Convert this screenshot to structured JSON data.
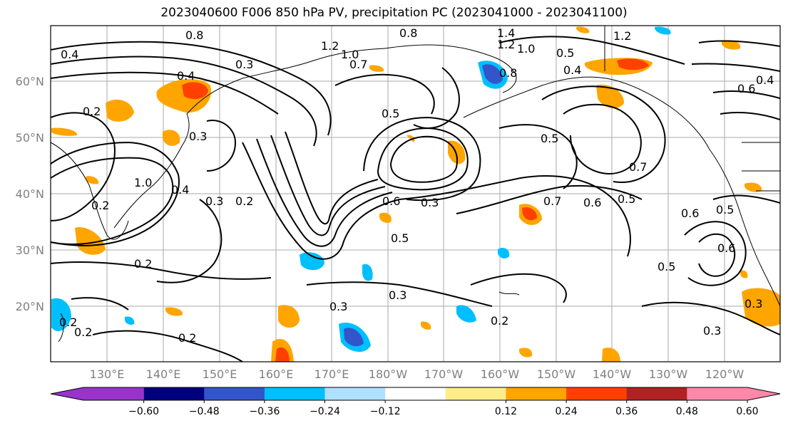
{
  "title": "2023040600 F006 850 hPa PV, precipitation PC (2023041000 - 2023041100)",
  "map": {
    "lat_labels": [
      "60°N",
      "50°N",
      "40°N",
      "30°N",
      "20°N"
    ],
    "lon_labels": [
      "130°E",
      "140°E",
      "150°E",
      "160°E",
      "170°E",
      "180°W",
      "170°W",
      "160°W",
      "150°W",
      "140°W",
      "130°W",
      "120°W"
    ],
    "contour_labels": [
      "0.4",
      "0.8",
      "1.2",
      "1.0",
      "0.7",
      "0.3",
      "0.4",
      "0.2",
      "0.3",
      "0.5",
      "0.8",
      "1.4",
      "1.2",
      "1.0",
      "0.8",
      "0.5",
      "0.4",
      "1.2",
      "0.6",
      "0.4",
      "0.2",
      "0.4",
      "1.0",
      "0.2",
      "0.3",
      "0.5",
      "0.3",
      "0.6",
      "0.3",
      "0.5",
      "0.7",
      "0.6",
      "0.5",
      "0.6",
      "0.2",
      "0.3",
      "0.2",
      "0.2",
      "0.2",
      "0.3",
      "0.5",
      "0.2",
      "0.3",
      "0.6",
      "0.5",
      "0.7"
    ]
  },
  "colorbar": {
    "colors": [
      "#9933cc",
      "#00007f",
      "#3355cc",
      "#00bfff",
      "#b0e0ff",
      "#ffffff",
      "#ffee88",
      "#ffa500",
      "#ff4000",
      "#b22222",
      "#ff88aa"
    ],
    "ticks": [
      "−0.60",
      "−0.48",
      "−0.36",
      "−0.24",
      "−0.12",
      "0.12",
      "0.24",
      "0.36",
      "0.48",
      "0.60"
    ]
  }
}
